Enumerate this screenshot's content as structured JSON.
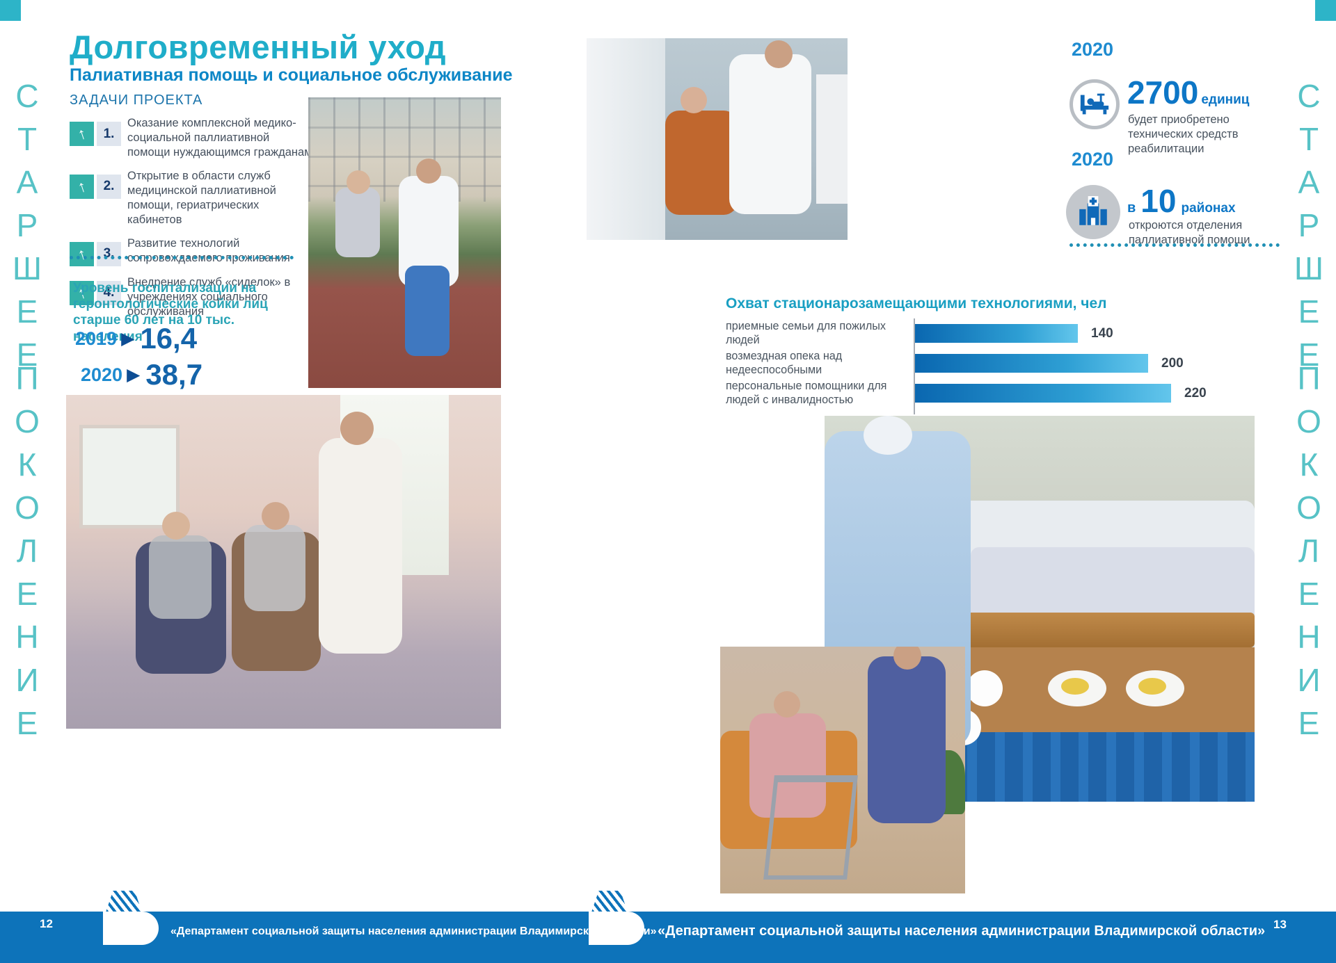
{
  "side_text": {
    "top": "СТАРШЕЕ",
    "bottom": "ПОКОЛЕНИЕ"
  },
  "icons": {
    "up_arrow": "↑",
    "triangle_right": "▶"
  },
  "left_page": {
    "page_number": "12",
    "title": "Долговременный уход",
    "subtitle": "Палиативная помощь и социальное обслуживание",
    "tasks_header": "ЗАДАЧИ ПРОЕКТА",
    "tasks": [
      {
        "num": "1.",
        "text": "Оказание комплексной медико-социальной паллиативной помощи нуждающимся гражданам"
      },
      {
        "num": "2.",
        "text": "Открытие в области служб медицинской паллиативной помощи, гериатрических кабинетов"
      },
      {
        "num": "3.",
        "text": "Развитие технологий сопровождаемого проживания"
      },
      {
        "num": "4.",
        "text": "Внедрение служб «сиделок» в учреждениях социального обслуживания"
      }
    ],
    "hospitalization_caption": "Уровень госпитализации на геронтологические койки лиц старше 60 лет на 10 тыс. населения",
    "hospitalization_rows": [
      {
        "year": "2019",
        "value": "16,4"
      },
      {
        "year": "2020",
        "value": "38,7"
      }
    ]
  },
  "right_page": {
    "page_number": "13",
    "stat_blocks": [
      {
        "year": "2020",
        "icon": "rehab-equipment-icon",
        "value": "2700",
        "unit": "единиц",
        "description": "будет приобретено технических средств реабилитации"
      },
      {
        "year": "2020",
        "icon": "clinic-building-icon",
        "prefix": "в",
        "value": "10",
        "unit": "районах",
        "description": "откроются отделения паллиативной помощи"
      }
    ]
  },
  "chart_data": {
    "type": "bar",
    "orientation": "horizontal",
    "title": "Охват стационарозамещающими технологиями, чел",
    "categories": [
      "приемные семьи для пожилых людей",
      "возмездная опека над недееспособными",
      "персональные помощники для людей с инвалидностью"
    ],
    "values": [
      140,
      200,
      220
    ],
    "xlim": [
      0,
      240
    ],
    "grid": false,
    "legend": "none",
    "bar_gradient": [
      "#0a67b0",
      "#63c6ec"
    ]
  },
  "footer": {
    "text": "«Департамент социальной защиты населения администрации Владимирской области»"
  },
  "colors": {
    "accent_teal": "#1fadc9",
    "accent_blue": "#0d76c6",
    "footer_blue": "#0d73ba",
    "task_box_teal": "#33b1a8",
    "side_text_teal": "#57c2c6"
  }
}
